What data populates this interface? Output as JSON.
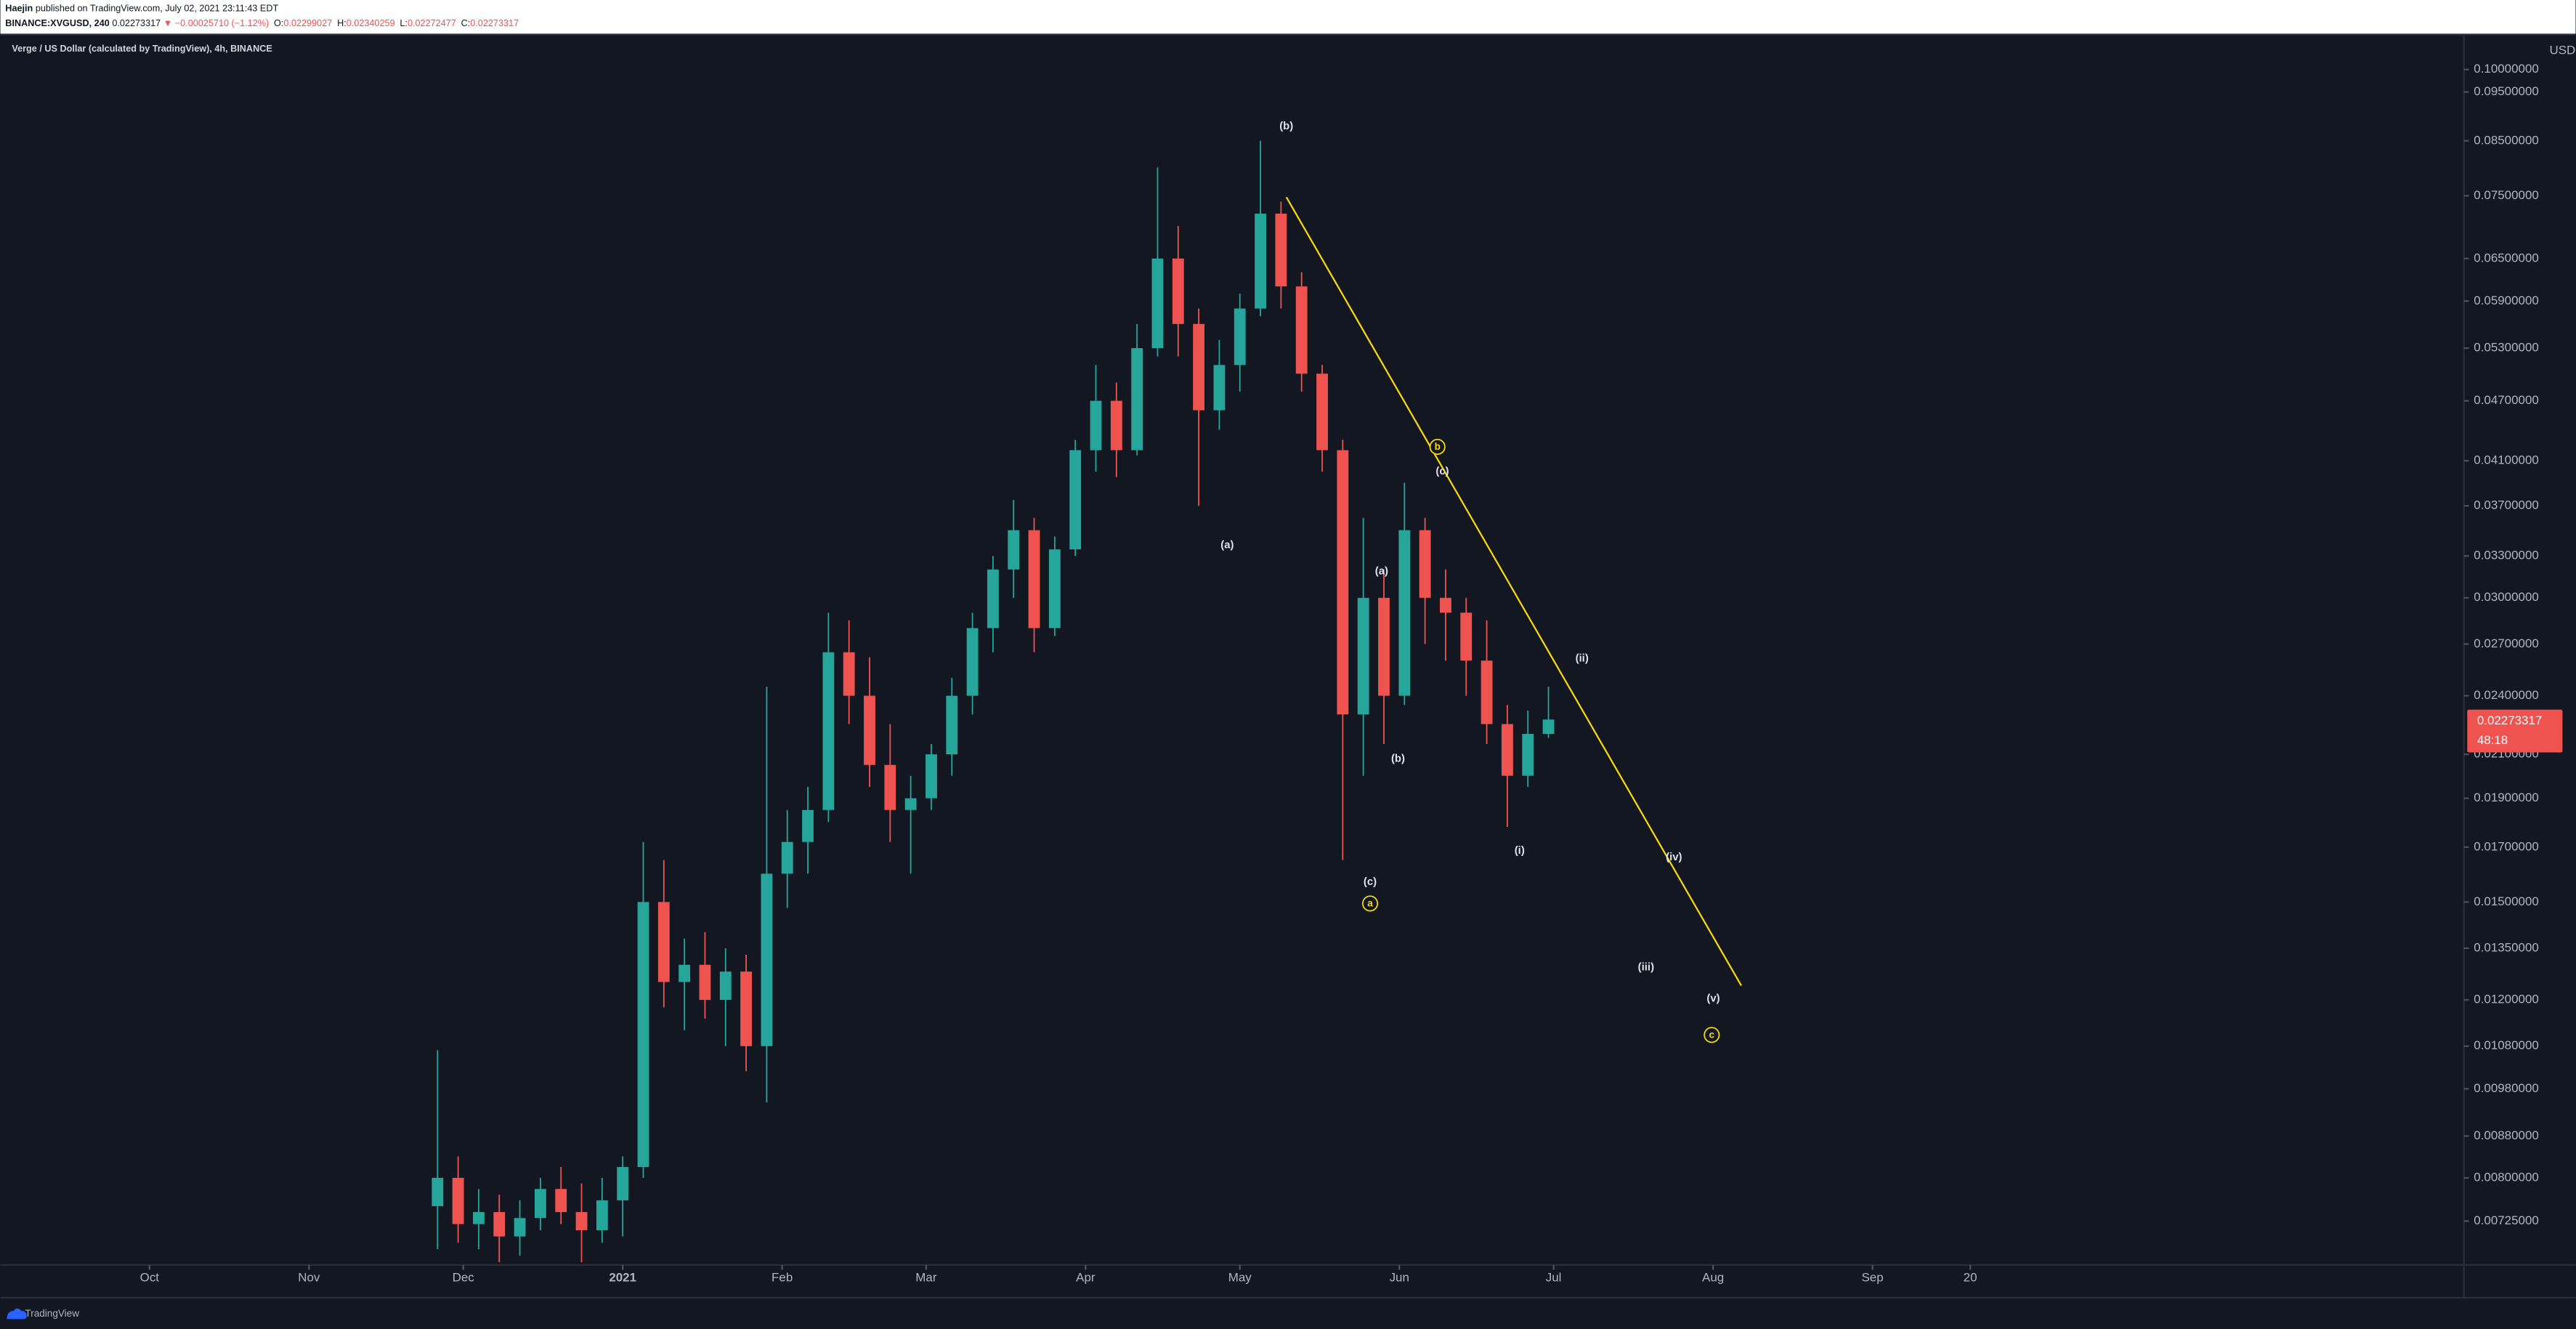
{
  "header": {
    "author": "Haejin",
    "published": "published on TradingView.com, July 02, 2021 23:11:43 EDT",
    "symbol": "BINANCE:XVGUSD, 240",
    "last": "0.02273317",
    "change": "▼ −0.00025710 (−1.12%)",
    "ohlc": [
      {
        "label": "O:",
        "value": "0.02299027"
      },
      {
        "label": "H:",
        "value": "0.02340259"
      },
      {
        "label": "L:",
        "value": "0.02272477"
      },
      {
        "label": "C:",
        "value": "0.02273317"
      }
    ]
  },
  "price_badge": {
    "price": "0.02273317",
    "countdown": "48:18"
  },
  "currency": "USD",
  "footer": "TradingView",
  "annotations": [
    "(b)",
    "(a)",
    "(c)",
    "(a)",
    "(b)",
    "(c)",
    "(i)",
    "(ii)",
    "(iii)",
    "(iv)",
    "(v)"
  ],
  "wave_circles": [
    "a",
    "b",
    "c"
  ],
  "chart_data": {
    "type": "candlestick",
    "title": "Verge / US Dollar (calculated by TradingView), 4h, BINANCE",
    "log_scale": true,
    "grid": false,
    "up_color": "#26a69a",
    "down_color": "#ef5350",
    "xlim": [
      "2020-09-02",
      "2021-12-25"
    ],
    "ylim": [
      0.00656,
      0.1079
    ],
    "xticks": [
      {
        "value": "2020-10-01",
        "label": "Oct"
      },
      {
        "value": "2020-11-01",
        "label": "Nov"
      },
      {
        "value": "2020-12-01",
        "label": "Dec"
      },
      {
        "value": "2021-01-01",
        "label": "2021"
      },
      {
        "value": "2021-02-01",
        "label": "Feb"
      },
      {
        "value": "2021-03-01",
        "label": "Mar"
      },
      {
        "value": "2021-04-01",
        "label": "Apr"
      },
      {
        "value": "2021-05-01",
        "label": "May"
      },
      {
        "value": "2021-06-01",
        "label": "Jun"
      },
      {
        "value": "2021-07-01",
        "label": "Jul"
      },
      {
        "value": "2021-08-01",
        "label": "Aug"
      },
      {
        "value": "2021-09-01",
        "label": "Sep"
      },
      {
        "value": "2021-09-20",
        "label": "20"
      }
    ],
    "yticks": [
      {
        "value": 0.1,
        "label": "0.10000000"
      },
      {
        "value": 0.095,
        "label": "0.09500000"
      },
      {
        "value": 0.085,
        "label": "0.08500000"
      },
      {
        "value": 0.075,
        "label": "0.07500000"
      },
      {
        "value": 0.065,
        "label": "0.06500000"
      },
      {
        "value": 0.059,
        "label": "0.05900000"
      },
      {
        "value": 0.053,
        "label": "0.05300000"
      },
      {
        "value": 0.047,
        "label": "0.04700000"
      },
      {
        "value": 0.041,
        "label": "0.04100000"
      },
      {
        "value": 0.037,
        "label": "0.03700000"
      },
      {
        "value": 0.033,
        "label": "0.03300000"
      },
      {
        "value": 0.03,
        "label": "0.03000000"
      },
      {
        "value": 0.027,
        "label": "0.02700000"
      },
      {
        "value": 0.024,
        "label": "0.02400000"
      },
      {
        "value": 0.021,
        "label": "0.02100000"
      },
      {
        "value": 0.019,
        "label": "0.01900000"
      },
      {
        "value": 0.017,
        "label": "0.01700000"
      },
      {
        "value": 0.015,
        "label": "0.01500000"
      },
      {
        "value": 0.0135,
        "label": "0.01350000"
      },
      {
        "value": 0.012,
        "label": "0.01200000"
      },
      {
        "value": 0.0108,
        "label": "0.01080000"
      },
      {
        "value": 0.0098,
        "label": "0.00980000"
      },
      {
        "value": 0.0088,
        "label": "0.00880000"
      },
      {
        "value": 0.008,
        "label": "0.00800000"
      },
      {
        "value": 0.00725,
        "label": "0.00725000"
      }
    ],
    "x": [
      "2020-11-26",
      "2020-11-30",
      "2020-12-04",
      "2020-12-08",
      "2020-12-12",
      "2020-12-16",
      "2020-12-20",
      "2020-12-24",
      "2020-12-28",
      "2021-01-01",
      "2021-01-05",
      "2021-01-09",
      "2021-01-13",
      "2021-01-17",
      "2021-01-21",
      "2021-01-25",
      "2021-01-29",
      "2021-02-02",
      "2021-02-06",
      "2021-02-10",
      "2021-02-14",
      "2021-02-18",
      "2021-02-22",
      "2021-02-26",
      "2021-03-02",
      "2021-03-06",
      "2021-03-10",
      "2021-03-14",
      "2021-03-18",
      "2021-03-22",
      "2021-03-26",
      "2021-03-30",
      "2021-04-03",
      "2021-04-07",
      "2021-04-11",
      "2021-04-15",
      "2021-04-19",
      "2021-04-23",
      "2021-04-27",
      "2021-05-01",
      "2021-05-05",
      "2021-05-09",
      "2021-05-13",
      "2021-05-17",
      "2021-05-21",
      "2021-05-25",
      "2021-05-29",
      "2021-06-02",
      "2021-06-06",
      "2021-06-10",
      "2021-06-14",
      "2021-06-18",
      "2021-06-22",
      "2021-06-26",
      "2021-06-30"
    ],
    "open": [
      0.0075,
      0.008,
      0.0072,
      0.0074,
      0.007,
      0.0073,
      0.0078,
      0.0074,
      0.0071,
      0.0076,
      0.0082,
      0.015,
      0.0125,
      0.013,
      0.012,
      0.0128,
      0.0108,
      0.016,
      0.0172,
      0.0185,
      0.0265,
      0.024,
      0.0205,
      0.0185,
      0.019,
      0.021,
      0.024,
      0.028,
      0.032,
      0.035,
      0.028,
      0.0335,
      0.042,
      0.047,
      0.042,
      0.053,
      0.065,
      0.056,
      0.046,
      0.051,
      0.058,
      0.072,
      0.061,
      0.05,
      0.042,
      0.023,
      0.03,
      0.024,
      0.035,
      0.03,
      0.029,
      0.026,
      0.0225,
      0.02,
      0.022
    ],
    "high": [
      0.0107,
      0.0084,
      0.0078,
      0.0077,
      0.0076,
      0.008,
      0.0082,
      0.0079,
      0.008,
      0.0084,
      0.0172,
      0.0165,
      0.0138,
      0.014,
      0.0135,
      0.0133,
      0.0245,
      0.0185,
      0.0195,
      0.029,
      0.0285,
      0.0262,
      0.0225,
      0.02,
      0.0215,
      0.025,
      0.029,
      0.033,
      0.0375,
      0.036,
      0.0345,
      0.043,
      0.051,
      0.049,
      0.056,
      0.08,
      0.07,
      0.058,
      0.054,
      0.06,
      0.085,
      0.074,
      0.063,
      0.051,
      0.043,
      0.036,
      0.032,
      0.039,
      0.036,
      0.032,
      0.03,
      0.0285,
      0.0235,
      0.0232,
      0.0245
    ],
    "low": [
      0.0068,
      0.0069,
      0.0068,
      0.0066,
      0.0067,
      0.0071,
      0.0072,
      0.0066,
      0.0069,
      0.007,
      0.008,
      0.0118,
      0.0112,
      0.0115,
      0.0108,
      0.0102,
      0.0095,
      0.0148,
      0.016,
      0.018,
      0.0225,
      0.0195,
      0.0172,
      0.016,
      0.0185,
      0.02,
      0.023,
      0.0265,
      0.03,
      0.0265,
      0.0275,
      0.033,
      0.04,
      0.0395,
      0.0415,
      0.052,
      0.052,
      0.037,
      0.044,
      0.048,
      0.057,
      0.058,
      0.048,
      0.04,
      0.0165,
      0.02,
      0.0215,
      0.0235,
      0.027,
      0.026,
      0.024,
      0.0215,
      0.0178,
      0.0195,
      0.0218
    ],
    "close": [
      0.008,
      0.0072,
      0.0074,
      0.007,
      0.0073,
      0.0078,
      0.0074,
      0.0071,
      0.0076,
      0.0082,
      0.015,
      0.0125,
      0.013,
      0.012,
      0.0128,
      0.0108,
      0.016,
      0.0172,
      0.0185,
      0.0265,
      0.024,
      0.0205,
      0.0185,
      0.019,
      0.021,
      0.024,
      0.028,
      0.032,
      0.035,
      0.028,
      0.0335,
      0.042,
      0.047,
      0.042,
      0.053,
      0.065,
      0.056,
      0.046,
      0.051,
      0.058,
      0.072,
      0.061,
      0.05,
      0.042,
      0.023,
      0.03,
      0.024,
      0.035,
      0.03,
      0.029,
      0.026,
      0.0225,
      0.02,
      0.022,
      0.02273317
    ]
  }
}
